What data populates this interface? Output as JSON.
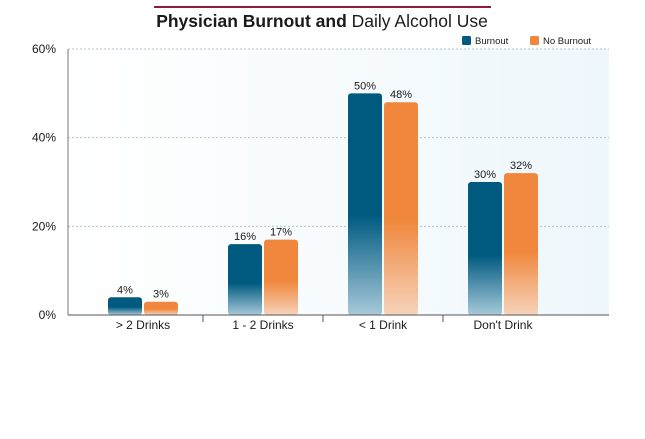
{
  "chart_data": {
    "type": "bar",
    "title_bold": "Physician Burnout and",
    "title_regular": "Daily Alcohol Use",
    "categories": [
      "> 2 Drinks",
      "1 - 2 Drinks",
      "< 1 Drink",
      "Don't Drink"
    ],
    "series": [
      {
        "name": "Burnout",
        "values": [
          4,
          16,
          50,
          30
        ],
        "labels": [
          "4%",
          "16%",
          "50%",
          "30%"
        ],
        "color": "#005a80",
        "fade_color": "#a7c9da"
      },
      {
        "name": "No Burnout",
        "values": [
          3,
          17,
          48,
          32
        ],
        "labels": [
          "3%",
          "17%",
          "48%",
          "32%"
        ],
        "color": "#f0873c",
        "fade_color": "#f6d3bb"
      }
    ],
    "ylim": [
      0,
      60
    ],
    "yticks": [
      0,
      20,
      40,
      60
    ],
    "ytick_labels": [
      "0%",
      "20%",
      "40%",
      "60%"
    ],
    "grid": true,
    "legend_position": "top-right",
    "accent_color": "#8b1c3a",
    "plot_background": "#eef7fc"
  }
}
